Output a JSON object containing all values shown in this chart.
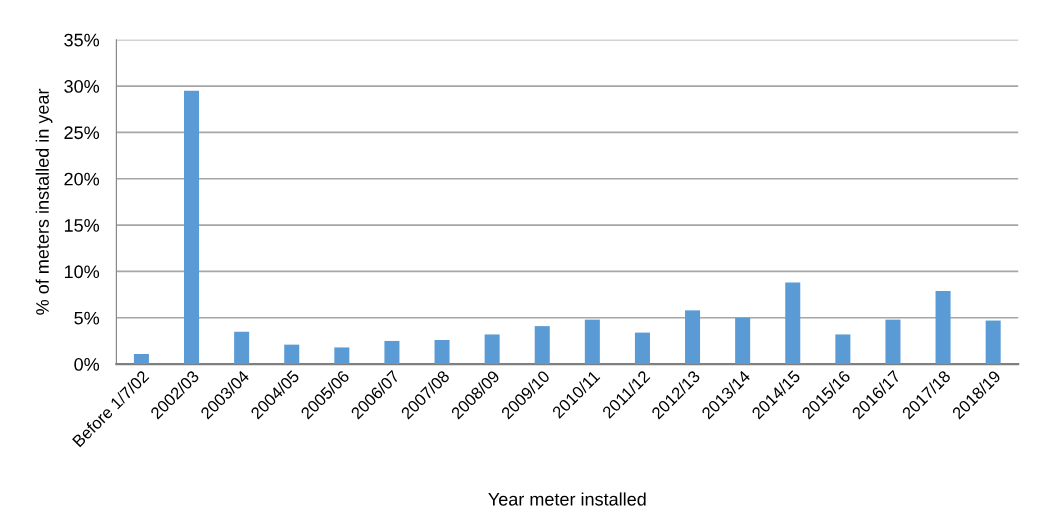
{
  "chart_data": {
    "type": "bar",
    "xlabel": "Year meter installed",
    "ylabel": "% of meters installed in year",
    "categories": [
      "Before 1/7/02",
      "2002/03",
      "2003/04",
      "2004/05",
      "2005/06",
      "2006/07",
      "2007/08",
      "2008/09",
      "2009/10",
      "2010/11",
      "2011/12",
      "2012/13",
      "2013/14",
      "2014/15",
      "2015/16",
      "2016/17",
      "2017/18",
      "2018/19"
    ],
    "values": [
      1.1,
      29.5,
      3.5,
      2.1,
      1.8,
      2.5,
      2.6,
      3.2,
      4.1,
      4.8,
      3.4,
      5.8,
      5.0,
      8.8,
      3.2,
      4.8,
      7.9,
      4.7
    ],
    "color": "#5b9bd5",
    "ylim": [
      0,
      35
    ],
    "yticks": [
      {
        "value": 0,
        "label": "0%"
      },
      {
        "value": 5,
        "label": "5%"
      },
      {
        "value": 10,
        "label": "10%"
      },
      {
        "value": 15,
        "label": "15%"
      },
      {
        "value": 20,
        "label": "20%"
      },
      {
        "value": 25,
        "label": "25%"
      },
      {
        "value": 30,
        "label": "30%"
      },
      {
        "value": 35,
        "label": "35%"
      }
    ],
    "grid": "y",
    "legend": false
  }
}
